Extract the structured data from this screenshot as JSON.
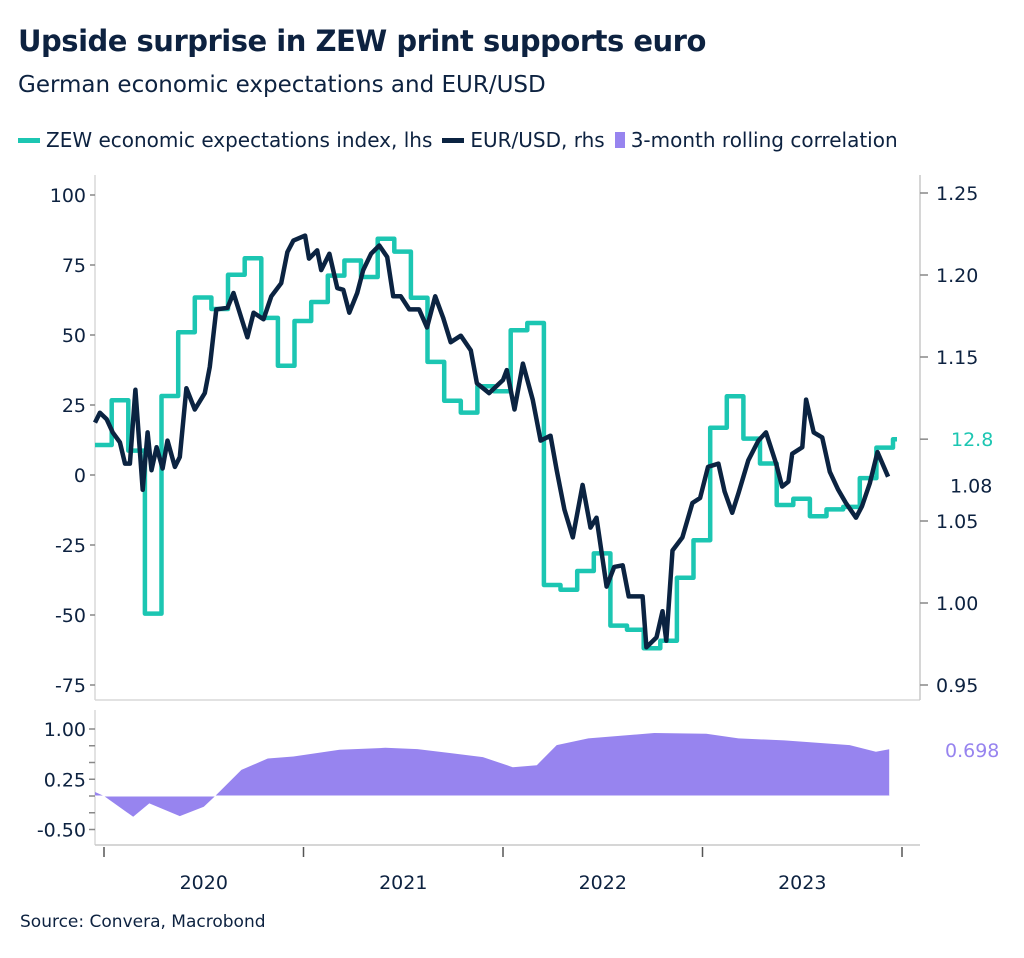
{
  "title": "Upside surprise in ZEW print supports euro",
  "subtitle": "German economic expectations and EUR/USD",
  "source": "Source: Convera, Macrobond",
  "colors": {
    "zew": "#1cc6b2",
    "eurusd": "#0b2341",
    "correlation": "#9784ef",
    "text": "#0d2240"
  },
  "chart_data": {
    "type": "line",
    "legend_placement": "top",
    "legend": [
      {
        "label": "ZEW economic expectations index, lhs",
        "key": "zew"
      },
      {
        "label": "EUR/USD, rhs",
        "key": "eurusd"
      },
      {
        "label": "3-month rolling correlation",
        "key": "correlation"
      }
    ],
    "x_axis": {
      "type": "date",
      "range": [
        "2019-12-01",
        "2023-12-31"
      ],
      "tick_labels": [
        "2020",
        "2021",
        "2022",
        "2023"
      ]
    },
    "left_axis": {
      "range": [
        -80,
        105
      ],
      "ticks": [
        100,
        75,
        50,
        25,
        0,
        -25,
        -50,
        -75
      ],
      "tick_labels": [
        "100",
        "75",
        "50",
        "25",
        "0",
        "-25",
        "-50",
        "-75"
      ]
    },
    "right_axis": {
      "range": [
        0.9415,
        1.2635
      ],
      "ticks": [
        1.25,
        1.2,
        1.15,
        1.05,
        1.0,
        0.95
      ],
      "tick_labels": [
        "1.25",
        "1.20",
        "1.15",
        "1.05",
        "1.00",
        "0.95"
      ]
    },
    "lower_axis": {
      "range": [
        -0.72,
        1.2
      ],
      "ticks": [
        1.0,
        0.75,
        0.5,
        0.25,
        0,
        -0.25,
        -0.5
      ],
      "tick_labels": [
        "1.00",
        "0.25",
        "-0.50"
      ],
      "labeled_ticks": [
        1.0,
        0.25,
        -0.5
      ]
    },
    "end_labels": {
      "zew": "12.8",
      "eurusd": "1.08",
      "correlation": "0.698"
    },
    "zew": {
      "step": true,
      "months": [
        "2019-12",
        "2020-01",
        "2020-02",
        "2020-03",
        "2020-04",
        "2020-05",
        "2020-06",
        "2020-07",
        "2020-08",
        "2020-09",
        "2020-10",
        "2020-11",
        "2020-12",
        "2021-01",
        "2021-02",
        "2021-03",
        "2021-04",
        "2021-05",
        "2021-06",
        "2021-07",
        "2021-08",
        "2021-09",
        "2021-10",
        "2021-11",
        "2021-12",
        "2022-01",
        "2022-02",
        "2022-03",
        "2022-04",
        "2022-05",
        "2022-06",
        "2022-07",
        "2022-08",
        "2022-09",
        "2022-10",
        "2022-11",
        "2022-12",
        "2023-01",
        "2023-02",
        "2023-03",
        "2023-04",
        "2023-05",
        "2023-06",
        "2023-07",
        "2023-08",
        "2023-09",
        "2023-10",
        "2023-11",
        "2023-12"
      ],
      "values": [
        10.7,
        26.7,
        8.7,
        -49.5,
        28.2,
        51.0,
        63.4,
        59.3,
        71.5,
        77.4,
        56.1,
        39.0,
        55.0,
        61.8,
        71.2,
        76.6,
        70.7,
        84.4,
        79.8,
        63.3,
        40.4,
        26.5,
        22.3,
        31.7,
        29.9,
        51.7,
        54.3,
        -39.3,
        -41.0,
        -34.3,
        -28.0,
        -53.8,
        -55.3,
        -61.9,
        -59.2,
        -36.7,
        -23.3,
        16.9,
        28.1,
        13.0,
        4.1,
        -10.7,
        -8.5,
        -14.7,
        -12.3,
        -11.4,
        -1.1,
        9.8,
        12.8
      ]
    },
    "eurusd": [
      [
        "2019-12-15",
        1.11
      ],
      [
        "2019-12-24",
        1.116
      ],
      [
        "2020-01-06",
        1.112
      ],
      [
        "2020-01-17",
        1.104
      ],
      [
        "2020-01-30",
        1.098
      ],
      [
        "2020-02-09",
        1.085
      ],
      [
        "2020-02-18",
        1.085
      ],
      [
        "2020-02-28",
        1.13
      ],
      [
        "2020-03-11",
        1.069
      ],
      [
        "2020-03-20",
        1.104
      ],
      [
        "2020-03-27",
        1.081
      ],
      [
        "2020-04-06",
        1.095
      ],
      [
        "2020-04-17",
        1.082
      ],
      [
        "2020-04-26",
        1.099
      ],
      [
        "2020-05-09",
        1.083
      ],
      [
        "2020-05-18",
        1.089
      ],
      [
        "2020-05-30",
        1.131
      ],
      [
        "2020-06-15",
        1.118
      ],
      [
        "2020-07-03",
        1.128
      ],
      [
        "2020-07-12",
        1.144
      ],
      [
        "2020-07-24",
        1.179
      ],
      [
        "2020-08-14",
        1.18
      ],
      [
        "2020-08-25",
        1.189
      ],
      [
        "2020-09-20",
        1.162
      ],
      [
        "2020-10-01",
        1.177
      ],
      [
        "2020-10-19",
        1.173
      ],
      [
        "2020-11-03",
        1.187
      ],
      [
        "2020-11-21",
        1.195
      ],
      [
        "2020-12-02",
        1.214
      ],
      [
        "2020-12-13",
        1.221
      ],
      [
        "2021-01-04",
        1.224
      ],
      [
        "2021-01-11",
        1.21
      ],
      [
        "2021-01-26",
        1.215
      ],
      [
        "2021-02-03",
        1.203
      ],
      [
        "2021-02-18",
        1.213
      ],
      [
        "2021-03-02",
        1.192
      ],
      [
        "2021-03-13",
        1.191
      ],
      [
        "2021-03-24",
        1.177
      ],
      [
        "2021-04-08",
        1.189
      ],
      [
        "2021-04-19",
        1.203
      ],
      [
        "2021-05-03",
        1.213
      ],
      [
        "2021-05-18",
        1.218
      ],
      [
        "2021-06-02",
        1.211
      ],
      [
        "2021-06-13",
        1.187
      ],
      [
        "2021-06-27",
        1.187
      ],
      [
        "2021-07-12",
        1.179
      ],
      [
        "2021-07-30",
        1.179
      ],
      [
        "2021-08-14",
        1.168
      ],
      [
        "2021-08-29",
        1.187
      ],
      [
        "2021-09-13",
        1.174
      ],
      [
        "2021-09-27",
        1.159
      ],
      [
        "2021-10-15",
        1.163
      ],
      [
        "2021-11-03",
        1.154
      ],
      [
        "2021-11-14",
        1.134
      ],
      [
        "2021-12-06",
        1.128
      ],
      [
        "2022-01-01",
        1.136
      ],
      [
        "2022-01-08",
        1.142
      ],
      [
        "2022-01-22",
        1.118
      ],
      [
        "2022-02-07",
        1.146
      ],
      [
        "2022-02-25",
        1.124
      ],
      [
        "2022-03-09",
        1.099
      ],
      [
        "2022-03-27",
        1.102
      ],
      [
        "2022-04-08",
        1.081
      ],
      [
        "2022-04-22",
        1.057
      ],
      [
        "2022-05-07",
        1.04
      ],
      [
        "2022-05-25",
        1.072
      ],
      [
        "2022-06-09",
        1.046
      ],
      [
        "2022-06-20",
        1.052
      ],
      [
        "2022-07-08",
        1.01
      ],
      [
        "2022-07-22",
        1.022
      ],
      [
        "2022-08-07",
        1.023
      ],
      [
        "2022-08-18",
        1.004
      ],
      [
        "2022-09-13",
        1.004
      ],
      [
        "2022-09-20",
        0.973
      ],
      [
        "2022-10-08",
        0.979
      ],
      [
        "2022-10-19",
        0.995
      ],
      [
        "2022-10-26",
        0.977
      ],
      [
        "2022-11-07",
        1.032
      ],
      [
        "2022-11-25",
        1.04
      ],
      [
        "2022-12-13",
        1.061
      ],
      [
        "2022-12-27",
        1.064
      ],
      [
        "2023-01-11",
        1.083
      ],
      [
        "2023-01-30",
        1.085
      ],
      [
        "2023-02-11",
        1.068
      ],
      [
        "2023-02-25",
        1.055
      ],
      [
        "2023-03-06",
        1.067
      ],
      [
        "2023-03-24",
        1.087
      ],
      [
        "2023-04-12",
        1.099
      ],
      [
        "2023-04-26",
        1.104
      ],
      [
        "2023-05-14",
        1.085
      ],
      [
        "2023-05-25",
        1.071
      ],
      [
        "2023-06-06",
        1.074
      ],
      [
        "2023-06-13",
        1.091
      ],
      [
        "2023-07-01",
        1.095
      ],
      [
        "2023-07-08",
        1.124
      ],
      [
        "2023-07-22",
        1.104
      ],
      [
        "2023-08-07",
        1.101
      ],
      [
        "2023-08-21",
        1.08
      ],
      [
        "2023-09-06",
        1.069
      ],
      [
        "2023-09-20",
        1.061
      ],
      [
        "2023-10-08",
        1.052
      ],
      [
        "2023-10-19",
        1.059
      ],
      [
        "2023-11-03",
        1.073
      ],
      [
        "2023-11-17",
        1.092
      ],
      [
        "2023-12-06",
        1.077
      ]
    ],
    "correlation": [
      [
        "2019-12-15",
        0.06
      ],
      [
        "2020-01-01",
        0.0
      ],
      [
        "2020-02-24",
        -0.31
      ],
      [
        "2020-03-23",
        -0.11
      ],
      [
        "2020-05-18",
        -0.3
      ],
      [
        "2020-07-01",
        -0.16
      ],
      [
        "2020-07-22",
        0.0
      ],
      [
        "2020-09-09",
        0.39
      ],
      [
        "2020-10-27",
        0.56
      ],
      [
        "2020-12-13",
        0.59
      ],
      [
        "2021-03-06",
        0.69
      ],
      [
        "2021-05-29",
        0.72
      ],
      [
        "2021-07-27",
        0.7
      ],
      [
        "2021-09-27",
        0.64
      ],
      [
        "2021-11-25",
        0.58
      ],
      [
        "2022-01-19",
        0.43
      ],
      [
        "2022-03-02",
        0.46
      ],
      [
        "2022-04-08",
        0.76
      ],
      [
        "2022-06-05",
        0.86
      ],
      [
        "2022-10-04",
        0.94
      ],
      [
        "2023-01-08",
        0.93
      ],
      [
        "2023-03-06",
        0.86
      ],
      [
        "2023-05-29",
        0.83
      ],
      [
        "2023-09-27",
        0.76
      ],
      [
        "2023-11-14",
        0.66
      ],
      [
        "2023-12-08",
        0.698
      ]
    ]
  }
}
